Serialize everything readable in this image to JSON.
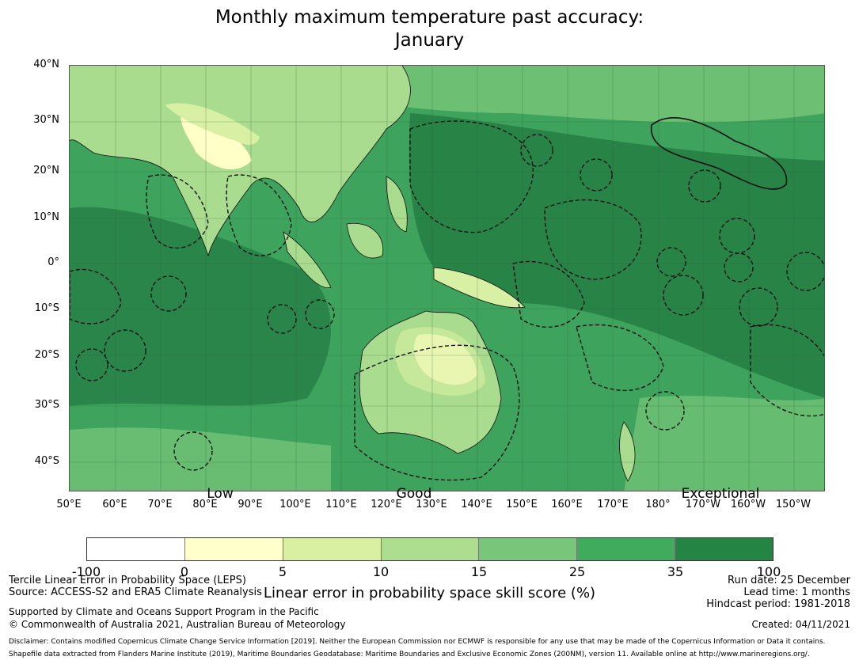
{
  "title": {
    "line1": "Monthly maximum temperature past accuracy:",
    "line2": "January"
  },
  "map": {
    "latitude_labels": [
      "40°N",
      "30°N",
      "20°N",
      "10°N",
      "0°",
      "10°S",
      "20°S",
      "30°S",
      "40°S"
    ],
    "longitude_labels": [
      "50°E",
      "60°E",
      "70°E",
      "80°E",
      "90°E",
      "100°E",
      "110°E",
      "120°E",
      "130°E",
      "140°E",
      "150°E",
      "160°E",
      "170°E",
      "180°",
      "170°W",
      "160°W",
      "150°W"
    ],
    "colors": {
      "ocean_base": "#3da35d",
      "ocean_dark": "#268045",
      "land": "#a9dc8e",
      "land_high": "#ffffc7",
      "land_mid": "#d8f0a3",
      "medium": "#78c679",
      "boundary": "#111111"
    }
  },
  "category_labels": {
    "low": "Low",
    "good": "Good",
    "exceptional": "Exceptional"
  },
  "colorbar": {
    "colors": [
      "#ffffff",
      "#ffffcc",
      "#d9f0a3",
      "#addd8e",
      "#78c679",
      "#41ab5d",
      "#238443"
    ],
    "ticks": [
      "-100",
      "0",
      "5",
      "10",
      "15",
      "25",
      "35",
      "100"
    ],
    "label": "Linear error in probability space skill score (%)"
  },
  "footer": {
    "line1": "Tercile Linear Error in Probability Space (LEPS)",
    "line2": "Source: ACCESS-S2 and ERA5 Climate Reanalysis",
    "support": "Supported by Climate and Oceans Support Program in the Pacific",
    "copyright": "© Commonwealth of Australia 2021, Australian Bureau of Meteorology",
    "run_date": "Run date: 25 December",
    "lead_time": "Lead time: 1 months",
    "hindcast": "Hindcast period: 1981-2018",
    "created": "Created: 04/11/2021",
    "disclaimer": "Disclaimer: Contains modified Copernicus Climate Change Service Information [2019]. Neither the European Commission nor ECMWF is responsible for any use that may be made of the Copernicus Information or Data it contains.",
    "shapefile": "Shapefile data extracted from Flanders Marine Institute (2019), Maritime Boundaries Geodatabase: Maritime Boundaries and Exclusive Economic Zones (200NM), version 11. Available online at http://www.marineregions.org/."
  }
}
